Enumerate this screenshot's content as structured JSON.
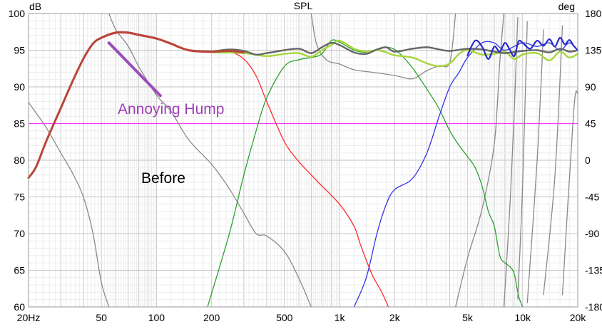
{
  "chart_data": {
    "type": "line",
    "title": "SPL",
    "y_left_unit": "dB",
    "y_right_unit": "deg",
    "xscale": "log",
    "xlim": [
      20,
      20000
    ],
    "ylim": [
      60,
      100
    ],
    "ylim_right": [
      -180,
      180
    ],
    "grid": true,
    "x_tick_values": [
      20,
      50,
      100,
      200,
      500,
      1000,
      2000,
      5000,
      10000,
      20000
    ],
    "x_tick_labels": [
      "20Hz",
      "50",
      "100",
      "200",
      "500",
      "1k",
      "2k",
      "5k",
      "10k",
      "20k"
    ],
    "y_ticks": [
      60,
      65,
      70,
      75,
      80,
      85,
      90,
      95,
      100
    ],
    "y_tick_labels": [
      "60",
      "65",
      "70",
      "75",
      "80",
      "85",
      "90",
      "95",
      "100"
    ],
    "y_right_ticks": [
      -180,
      -135,
      -90,
      -45,
      0,
      45,
      90,
      135,
      180
    ],
    "y_right_tick_labels": [
      "-180",
      "-135",
      "-90",
      "-45",
      "0",
      "45",
      "90",
      "135",
      "180"
    ],
    "reference_line": {
      "y": 85,
      "color": "#ff33ff"
    },
    "annotations": [
      {
        "text": "Annoying Hump",
        "color": "#a040b8"
      },
      {
        "text": "Before",
        "color": "#000000"
      }
    ],
    "annotation_arrow": {
      "color": "#9b4fb8",
      "from": [
        55,
        96
      ],
      "to": [
        105,
        88.8
      ]
    },
    "series": [
      {
        "color": "#8a8a8a",
        "axis": "right",
        "points": [
          [
            20,
            71
          ],
          [
            22,
            58
          ],
          [
            25,
            40
          ],
          [
            30,
            9
          ],
          [
            35,
            -17
          ],
          [
            40,
            -46
          ],
          [
            45,
            -90
          ],
          [
            50,
            -150
          ],
          [
            55,
            -180
          ]
        ]
      },
      {
        "color": "#8a8a8a",
        "axis": "right",
        "points": [
          [
            55,
            180
          ],
          [
            60,
            160
          ],
          [
            70,
            140
          ],
          [
            80,
            115
          ],
          [
            100,
            80
          ],
          [
            120,
            60
          ],
          [
            150,
            25
          ],
          [
            200,
            -5
          ],
          [
            250,
            -35
          ],
          [
            300,
            -65
          ],
          [
            350,
            -90
          ],
          [
            400,
            -93
          ],
          [
            500,
            -112
          ],
          [
            600,
            -145
          ],
          [
            700,
            -180
          ]
        ]
      },
      {
        "color": "#8a8a8a",
        "axis": "right",
        "points": [
          [
            700,
            180
          ],
          [
            750,
            142
          ],
          [
            850,
            123
          ],
          [
            1000,
            118
          ],
          [
            1200,
            111
          ],
          [
            1500,
            108
          ],
          [
            2000,
            104
          ],
          [
            2500,
            100
          ],
          [
            3000,
            110
          ],
          [
            3500,
            116
          ],
          [
            4000,
            120
          ],
          [
            4300,
            180
          ]
        ]
      },
      {
        "color": "#8a8a8a",
        "axis": "right",
        "points": [
          [
            4300,
            -180
          ],
          [
            5000,
            -120
          ],
          [
            6000,
            -60
          ],
          [
            7000,
            20
          ],
          [
            7500,
            120
          ],
          [
            7900,
            180
          ]
        ]
      },
      {
        "color": "#8a8a8a",
        "axis": "right",
        "points": [
          [
            7900,
            -180
          ],
          [
            8500,
            -60
          ],
          [
            9000,
            60
          ],
          [
            9400,
            175
          ]
        ]
      },
      {
        "color": "#8a8a8a",
        "axis": "right",
        "points": [
          [
            9400,
            -170
          ],
          [
            10000,
            -30
          ],
          [
            10600,
            170
          ]
        ]
      },
      {
        "color": "#8a8a8a",
        "axis": "right",
        "points": [
          [
            10600,
            -175
          ],
          [
            12000,
            0
          ],
          [
            13000,
            160
          ]
        ]
      },
      {
        "color": "#8a8a8a",
        "axis": "right",
        "points": [
          [
            13000,
            -165
          ],
          [
            15000,
            -20
          ],
          [
            16500,
            165
          ]
        ]
      },
      {
        "color": "#8a8a8a",
        "axis": "right",
        "points": [
          [
            16500,
            -165
          ],
          [
            19000,
            60
          ],
          [
            20000,
            82
          ]
        ]
      },
      {
        "color": "#ff2a2a",
        "points": [
          [
            20,
            77.5
          ],
          [
            22,
            79
          ],
          [
            25,
            82.5
          ],
          [
            30,
            87
          ],
          [
            35,
            90.8
          ],
          [
            40,
            93.8
          ],
          [
            45,
            95.8
          ],
          [
            50,
            96.6
          ],
          [
            60,
            97.3
          ],
          [
            70,
            97.3
          ],
          [
            80,
            97
          ],
          [
            100,
            96.5
          ],
          [
            120,
            95.8
          ],
          [
            150,
            94.9
          ],
          [
            200,
            94.7
          ],
          [
            250,
            94.8
          ],
          [
            300,
            93.8
          ],
          [
            350,
            91.5
          ],
          [
            400,
            88
          ],
          [
            500,
            82.5
          ],
          [
            600,
            79.8
          ],
          [
            700,
            78
          ],
          [
            800,
            76.5
          ],
          [
            1000,
            74
          ],
          [
            1200,
            71
          ],
          [
            1300,
            68.5
          ],
          [
            1500,
            64.5
          ],
          [
            1700,
            62
          ],
          [
            1850,
            60
          ]
        ]
      },
      {
        "color": "#2ca02c",
        "points": [
          [
            190,
            60
          ],
          [
            250,
            70
          ],
          [
            300,
            78
          ],
          [
            350,
            84
          ],
          [
            400,
            88.5
          ],
          [
            500,
            92.8
          ],
          [
            600,
            93.7
          ],
          [
            700,
            94
          ],
          [
            800,
            94.5
          ],
          [
            900,
            96.3
          ],
          [
            1000,
            96.1
          ],
          [
            1200,
            95
          ],
          [
            1400,
            94.7
          ],
          [
            1600,
            95
          ],
          [
            1800,
            95.4
          ],
          [
            2000,
            95.1
          ],
          [
            2200,
            94.2
          ],
          [
            2500,
            92.6
          ],
          [
            3000,
            89.7
          ],
          [
            3500,
            87
          ],
          [
            4000,
            84
          ],
          [
            4500,
            82
          ],
          [
            5000,
            80.5
          ],
          [
            5500,
            79
          ],
          [
            6000,
            76.5
          ],
          [
            6500,
            73
          ],
          [
            7000,
            71
          ],
          [
            7500,
            67
          ],
          [
            8000,
            66
          ],
          [
            8500,
            65.5
          ],
          [
            9000,
            64.5
          ],
          [
            9500,
            61.5
          ],
          [
            10000,
            60
          ]
        ]
      },
      {
        "color": "#3333ee",
        "points": [
          [
            1200,
            60
          ],
          [
            1400,
            64
          ],
          [
            1600,
            70
          ],
          [
            1800,
            74
          ],
          [
            2000,
            76
          ],
          [
            2500,
            77.5
          ],
          [
            3000,
            81
          ],
          [
            3500,
            86
          ],
          [
            4000,
            90
          ],
          [
            4500,
            92
          ],
          [
            5000,
            94
          ],
          [
            6000,
            96
          ],
          [
            7000,
            96
          ],
          [
            8000,
            95
          ],
          [
            10000,
            96
          ],
          [
            12000,
            95.5
          ],
          [
            14000,
            96
          ],
          [
            16000,
            95
          ],
          [
            18000,
            96
          ],
          [
            20000,
            95
          ]
        ]
      },
      {
        "color": "#a6d63a",
        "width": 2.4,
        "points": [
          [
            200,
            94.7
          ],
          [
            300,
            94.6
          ],
          [
            400,
            94.2
          ],
          [
            500,
            94.5
          ],
          [
            600,
            94.6
          ],
          [
            700,
            94.1
          ],
          [
            800,
            95
          ],
          [
            900,
            95.7
          ],
          [
            1000,
            96.3
          ],
          [
            1200,
            95.2
          ],
          [
            1400,
            94.8
          ],
          [
            1600,
            95
          ],
          [
            1800,
            94.7
          ],
          [
            2000,
            94.3
          ],
          [
            2500,
            94
          ],
          [
            3000,
            93.2
          ],
          [
            3500,
            92.8
          ],
          [
            4000,
            93.2
          ],
          [
            4500,
            94.5
          ],
          [
            5000,
            95
          ],
          [
            6000,
            94.4
          ],
          [
            7000,
            94.5
          ],
          [
            8000,
            94.8
          ],
          [
            9000,
            93.8
          ],
          [
            10000,
            94.4
          ],
          [
            12000,
            94.6
          ],
          [
            14000,
            93.6
          ],
          [
            16000,
            94.8
          ],
          [
            18000,
            94
          ],
          [
            20000,
            94.5
          ]
        ]
      },
      {
        "color": "#666666",
        "width": 2.4,
        "points": [
          [
            200,
            94.8
          ],
          [
            250,
            95.1
          ],
          [
            300,
            94.9
          ],
          [
            350,
            94.4
          ],
          [
            400,
            94.6
          ],
          [
            500,
            95
          ],
          [
            600,
            95.2
          ],
          [
            700,
            94.6
          ],
          [
            800,
            95.4
          ],
          [
            900,
            96
          ],
          [
            1000,
            95.7
          ],
          [
            1200,
            94.7
          ],
          [
            1400,
            94.5
          ],
          [
            1600,
            95.1
          ],
          [
            1800,
            95.4
          ],
          [
            2000,
            94.8
          ],
          [
            2500,
            95.2
          ],
          [
            3000,
            95.4
          ],
          [
            3500,
            95.1
          ],
          [
            4000,
            94.9
          ],
          [
            5000,
            95.2
          ],
          [
            6000,
            95.1
          ],
          [
            7000,
            94.8
          ],
          [
            8000,
            94.6
          ],
          [
            10000,
            94.9
          ],
          [
            12000,
            95
          ],
          [
            14000,
            94.7
          ],
          [
            16000,
            95.2
          ],
          [
            18000,
            94.8
          ],
          [
            20000,
            95
          ]
        ]
      },
      {
        "color": "#b8463a",
        "width": 3,
        "points": [
          [
            20,
            77.6
          ],
          [
            22,
            79.1
          ],
          [
            25,
            82.6
          ],
          [
            30,
            87.1
          ],
          [
            35,
            90.9
          ],
          [
            40,
            93.9
          ],
          [
            45,
            95.9
          ],
          [
            50,
            96.7
          ],
          [
            60,
            97.4
          ],
          [
            70,
            97.4
          ],
          [
            80,
            97.1
          ],
          [
            100,
            96.6
          ],
          [
            120,
            95.9
          ],
          [
            150,
            95
          ],
          [
            200,
            94.8
          ],
          [
            250,
            94.9
          ],
          [
            300,
            94.7
          ]
        ]
      },
      {
        "color": "#2a2acc",
        "width": 2.2,
        "points": [
          [
            5000,
            94.3
          ],
          [
            5500,
            96.3
          ],
          [
            6000,
            95.5
          ],
          [
            6500,
            93.8
          ],
          [
            7000,
            95.5
          ],
          [
            7500,
            94.8
          ],
          [
            8000,
            96
          ],
          [
            8500,
            95.1
          ],
          [
            9000,
            94.2
          ],
          [
            9500,
            96.2
          ],
          [
            10000,
            96
          ],
          [
            11000,
            95.2
          ],
          [
            12000,
            96.3
          ],
          [
            13000,
            95.6
          ],
          [
            14000,
            96.5
          ],
          [
            15000,
            95.5
          ],
          [
            16000,
            96.7
          ],
          [
            17000,
            95.8
          ],
          [
            18000,
            96.4
          ],
          [
            19000,
            95.6
          ],
          [
            20000,
            95
          ]
        ]
      }
    ]
  }
}
